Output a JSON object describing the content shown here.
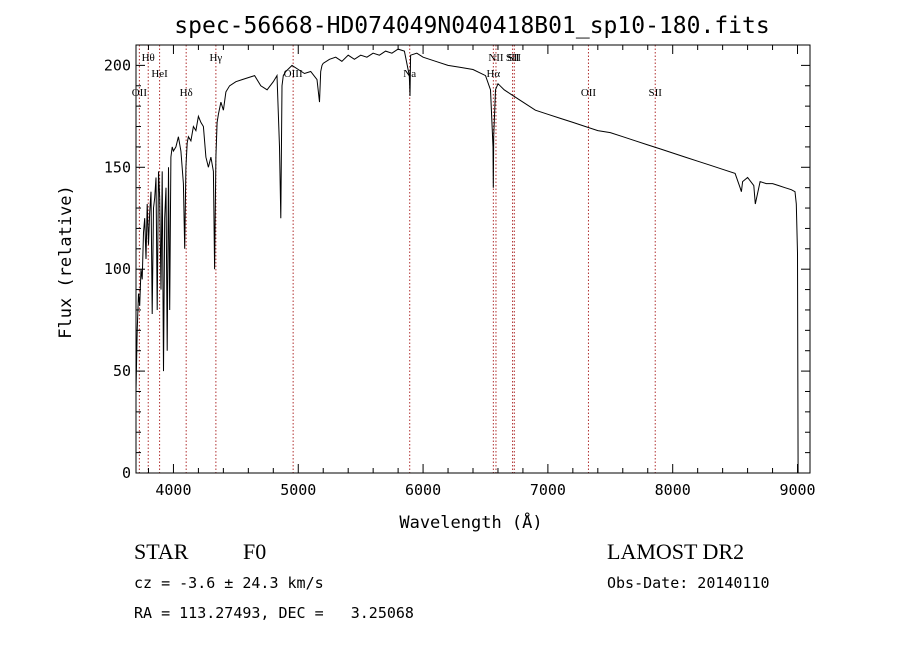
{
  "chart_data": {
    "type": "line",
    "title": "spec-56668-HD074049N040418B01_sp10-180.fits",
    "xlabel": "Wavelength (Å)",
    "ylabel": "Flux (relative)",
    "xlim": [
      3700,
      9100
    ],
    "ylim": [
      0,
      210
    ],
    "xticks": [
      4000,
      5000,
      6000,
      7000,
      8000,
      9000
    ],
    "yticks": [
      0,
      50,
      100,
      150,
      200
    ],
    "grid": false,
    "line_color": "#000000",
    "marker_color": "#b03030",
    "series": [
      {
        "name": "",
        "x": [
          3700,
          3710,
          3720,
          3730,
          3740,
          3750,
          3760,
          3770,
          3780,
          3790,
          3800,
          3810,
          3820,
          3830,
          3840,
          3850,
          3860,
          3870,
          3880,
          3890,
          3900,
          3910,
          3920,
          3930,
          3940,
          3950,
          3960,
          3970,
          3980,
          3990,
          4000,
          4020,
          4040,
          4060,
          4080,
          4090,
          4100,
          4110,
          4120,
          4140,
          4160,
          4180,
          4200,
          4220,
          4240,
          4260,
          4280,
          4300,
          4320,
          4330,
          4340,
          4350,
          4360,
          4380,
          4400,
          4420,
          4450,
          4500,
          4550,
          4600,
          4650,
          4700,
          4750,
          4800,
          4830,
          4850,
          4860,
          4870,
          4880,
          4900,
          4950,
          5000,
          5050,
          5100,
          5150,
          5170,
          5180,
          5190,
          5200,
          5250,
          5300,
          5350,
          5400,
          5450,
          5500,
          5550,
          5600,
          5650,
          5700,
          5750,
          5800,
          5850,
          5890,
          5895,
          5900,
          5950,
          6000,
          6100,
          6200,
          6300,
          6400,
          6500,
          6540,
          6560,
          6563,
          6566,
          6580,
          6600,
          6650,
          6700,
          6800,
          6900,
          7000,
          7100,
          7200,
          7300,
          7400,
          7500,
          7600,
          7700,
          7800,
          7900,
          8000,
          8100,
          8200,
          8300,
          8400,
          8500,
          8540,
          8550,
          8560,
          8600,
          8650,
          8662,
          8700,
          8750,
          8800,
          8850,
          8900,
          8950,
          8980,
          8990,
          9000,
          9005
        ],
        "y": [
          40,
          70,
          88,
          82,
          100,
          95,
          118,
          125,
          105,
          132,
          112,
          128,
          138,
          78,
          130,
          135,
          145,
          80,
          148,
          135,
          90,
          148,
          50,
          125,
          140,
          60,
          150,
          80,
          155,
          160,
          158,
          160,
          165,
          158,
          142,
          110,
          150,
          162,
          165,
          163,
          170,
          168,
          175,
          172,
          170,
          155,
          150,
          155,
          148,
          100,
          155,
          172,
          176,
          182,
          178,
          187,
          190,
          192,
          193,
          194,
          195,
          190,
          188,
          192,
          195,
          160,
          125,
          190,
          195,
          197,
          200,
          198,
          196,
          197,
          193,
          182,
          197,
          200,
          201,
          203,
          204,
          202,
          205,
          203,
          205,
          204,
          206,
          205,
          207,
          206,
          208,
          207,
          195,
          185,
          205,
          206,
          204,
          202,
          200,
          199,
          198,
          195,
          188,
          160,
          140,
          165,
          188,
          191,
          188,
          186,
          182,
          178,
          176,
          174,
          172,
          170,
          168,
          167,
          165,
          163,
          161,
          159,
          157,
          155,
          153,
          151,
          149,
          147,
          140,
          138,
          143,
          145,
          141,
          132,
          143,
          142,
          142,
          141,
          140,
          139,
          138,
          132,
          108,
          0
        ]
      }
    ],
    "spectral_lines": [
      {
        "label": "Hθ",
        "x": 3798
      },
      {
        "label": "OII",
        "x": 3727
      },
      {
        "label": "HeI",
        "x": 3889
      },
      {
        "label": "Hδ",
        "x": 4102
      },
      {
        "label": "Hγ",
        "x": 4340
      },
      {
        "label": "OIII",
        "x": 4959
      },
      {
        "label": "Na",
        "x": 5893
      },
      {
        "label": "NII",
        "x": 6584
      },
      {
        "label": "Hα",
        "x": 6563
      },
      {
        "label": "SII",
        "x": 6717
      },
      {
        "label": "SII",
        "x": 6731
      },
      {
        "label": "OII",
        "x": 7325
      },
      {
        "label": "SII",
        "x": 7860
      }
    ]
  },
  "info": {
    "object_type": "STAR",
    "subclass": "F0",
    "cz": "cz = -3.6 ± 24.3 km/s",
    "radec": "RA = 113.27493, DEC =   3.25068",
    "survey": "LAMOST DR2",
    "obs_date": "Obs-Date: 20140110"
  }
}
